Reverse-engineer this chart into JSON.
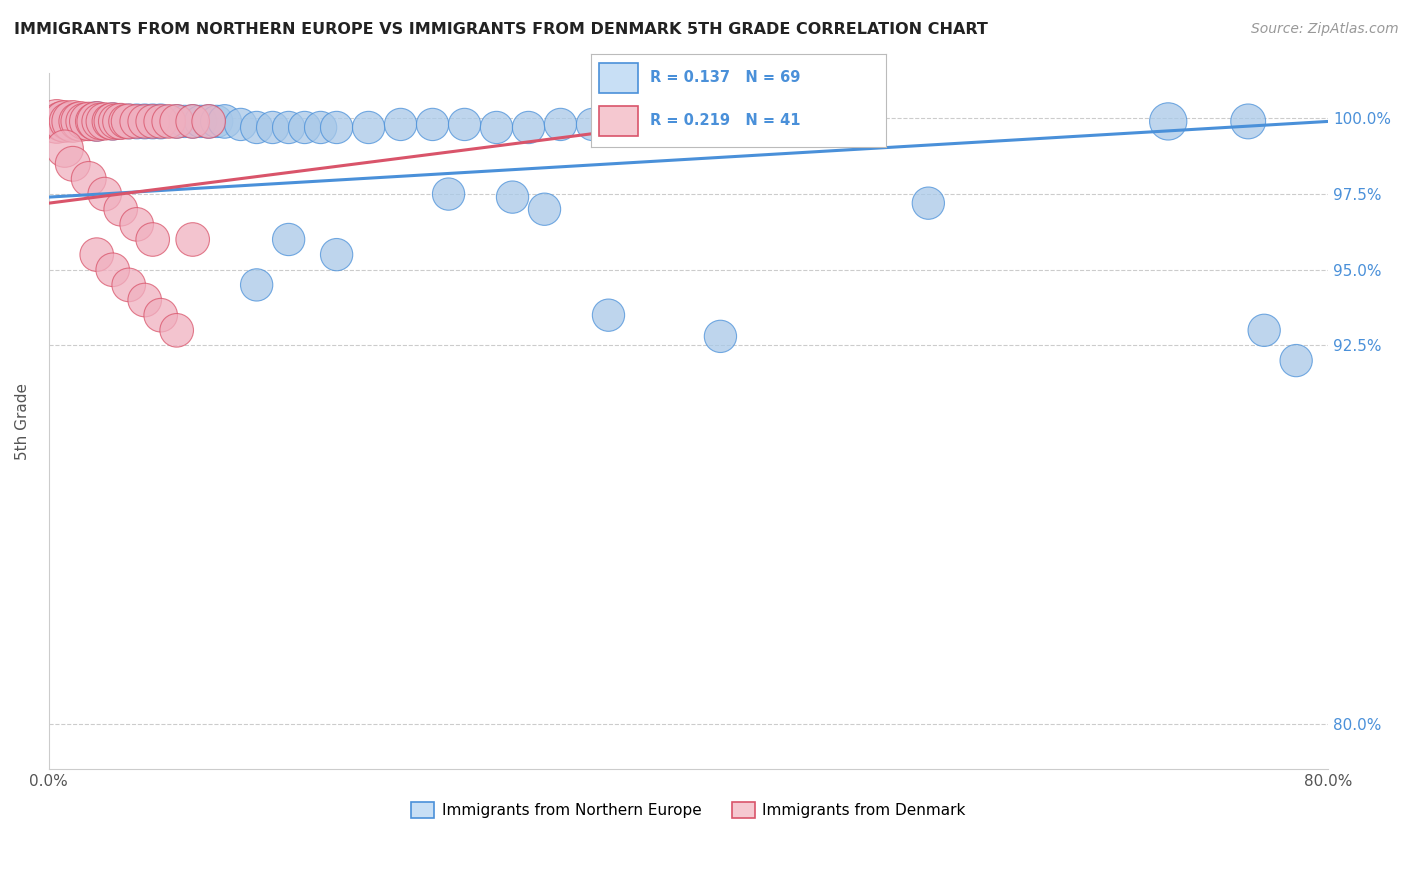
{
  "title": "IMMIGRANTS FROM NORTHERN EUROPE VS IMMIGRANTS FROM DENMARK 5TH GRADE CORRELATION CHART",
  "source": "Source: ZipAtlas.com",
  "ylabel": "5th Grade",
  "ytick_labels": [
    "80.0%",
    "92.5%",
    "95.0%",
    "97.5%",
    "100.0%"
  ],
  "ytick_values": [
    0.8,
    0.925,
    0.95,
    0.975,
    1.0
  ],
  "xmin": 0.0,
  "xmax": 0.8,
  "ymin": 0.785,
  "ymax": 1.015,
  "blue_color": "#a8c8e8",
  "pink_color": "#f0b0c0",
  "blue_line_color": "#4a90d9",
  "pink_line_color": "#d9546a",
  "legend_box_color": "#c8dff5",
  "legend_pink_box_color": "#f5c8d0",
  "blue_trend_x0": 0.0,
  "blue_trend_y0": 0.974,
  "blue_trend_x1": 0.8,
  "blue_trend_y1": 0.999,
  "pink_trend_x0": 0.0,
  "pink_trend_y0": 0.972,
  "pink_trend_x1": 0.4,
  "pink_trend_y1": 0.999,
  "blue_scatter_x": [
    0.005,
    0.008,
    0.01,
    0.012,
    0.015,
    0.018,
    0.02,
    0.022,
    0.025,
    0.025,
    0.027,
    0.03,
    0.03,
    0.032,
    0.033,
    0.035,
    0.038,
    0.04,
    0.04,
    0.042,
    0.045,
    0.048,
    0.05,
    0.052,
    0.055,
    0.058,
    0.06,
    0.062,
    0.065,
    0.068,
    0.07,
    0.075,
    0.08,
    0.085,
    0.09,
    0.095,
    0.1,
    0.105,
    0.11,
    0.12,
    0.13,
    0.14,
    0.15,
    0.16,
    0.17,
    0.18,
    0.2,
    0.22,
    0.24,
    0.26,
    0.28,
    0.3,
    0.32,
    0.34,
    0.36,
    0.38,
    0.25,
    0.29,
    0.31,
    0.15,
    0.18,
    0.13,
    0.35,
    0.42,
    0.55,
    0.7,
    0.75,
    0.76,
    0.78
  ],
  "blue_scatter_y": [
    0.999,
    0.999,
    0.999,
    0.999,
    0.999,
    0.999,
    0.999,
    0.999,
    0.999,
    0.999,
    0.999,
    0.999,
    0.999,
    0.999,
    0.999,
    0.999,
    0.999,
    0.999,
    0.999,
    0.999,
    0.999,
    0.999,
    0.999,
    0.999,
    0.999,
    0.999,
    0.999,
    0.999,
    0.999,
    0.999,
    0.999,
    0.999,
    0.999,
    0.999,
    0.999,
    0.999,
    0.999,
    0.999,
    0.999,
    0.998,
    0.997,
    0.997,
    0.997,
    0.997,
    0.997,
    0.997,
    0.997,
    0.998,
    0.998,
    0.998,
    0.997,
    0.997,
    0.998,
    0.998,
    0.997,
    0.997,
    0.975,
    0.974,
    0.97,
    0.96,
    0.955,
    0.945,
    0.935,
    0.928,
    0.972,
    0.999,
    0.999,
    0.93,
    0.92
  ],
  "blue_scatter_size": [
    70,
    60,
    80,
    60,
    70,
    60,
    70,
    60,
    80,
    70,
    60,
    90,
    70,
    60,
    70,
    60,
    60,
    80,
    70,
    60,
    70,
    60,
    70,
    60,
    70,
    60,
    70,
    60,
    70,
    60,
    70,
    60,
    65,
    60,
    65,
    60,
    65,
    60,
    65,
    60,
    60,
    60,
    60,
    60,
    60,
    60,
    60,
    60,
    60,
    60,
    60,
    60,
    60,
    60,
    60,
    60,
    60,
    60,
    60,
    60,
    60,
    60,
    60,
    60,
    60,
    80,
    70,
    60,
    60
  ],
  "pink_scatter_x": [
    0.005,
    0.008,
    0.01,
    0.012,
    0.015,
    0.018,
    0.02,
    0.022,
    0.025,
    0.028,
    0.03,
    0.032,
    0.035,
    0.038,
    0.04,
    0.042,
    0.045,
    0.048,
    0.05,
    0.055,
    0.06,
    0.065,
    0.07,
    0.075,
    0.08,
    0.09,
    0.1,
    0.01,
    0.015,
    0.025,
    0.035,
    0.045,
    0.055,
    0.065,
    0.03,
    0.04,
    0.05,
    0.06,
    0.07,
    0.08,
    0.09
  ],
  "pink_scatter_y": [
    0.999,
    0.999,
    0.999,
    0.999,
    0.999,
    0.999,
    0.999,
    0.999,
    0.999,
    0.999,
    0.999,
    0.999,
    0.999,
    0.999,
    0.999,
    0.999,
    0.999,
    0.999,
    0.999,
    0.999,
    0.999,
    0.999,
    0.999,
    0.999,
    0.999,
    0.999,
    0.999,
    0.99,
    0.985,
    0.98,
    0.975,
    0.97,
    0.965,
    0.96,
    0.955,
    0.95,
    0.945,
    0.94,
    0.935,
    0.93,
    0.96
  ],
  "pink_scatter_size": [
    110,
    90,
    100,
    80,
    100,
    80,
    90,
    75,
    85,
    75,
    90,
    75,
    80,
    70,
    80,
    70,
    75,
    65,
    70,
    65,
    65,
    65,
    65,
    65,
    65,
    65,
    65,
    80,
    70,
    70,
    65,
    65,
    65,
    65,
    65,
    65,
    65,
    65,
    65,
    65,
    65
  ]
}
